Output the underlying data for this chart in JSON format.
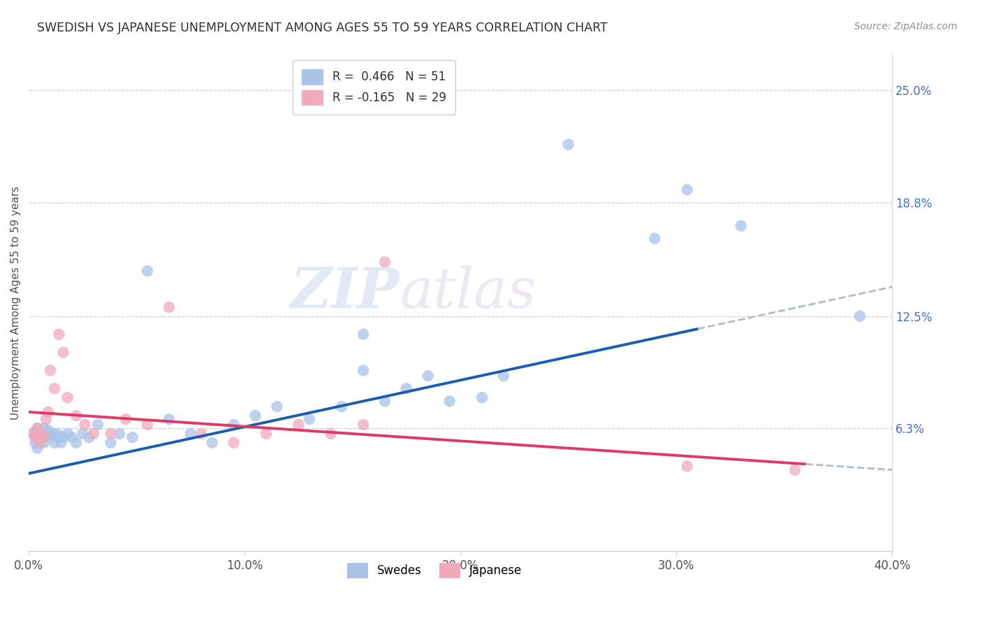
{
  "title": "SWEDISH VS JAPANESE UNEMPLOYMENT AMONG AGES 55 TO 59 YEARS CORRELATION CHART",
  "source": "Source: ZipAtlas.com",
  "ylabel": "Unemployment Among Ages 55 to 59 years",
  "xlim": [
    0.0,
    0.4
  ],
  "ylim": [
    -0.005,
    0.27
  ],
  "xtick_labels": [
    "0.0%",
    "10.0%",
    "20.0%",
    "30.0%",
    "40.0%"
  ],
  "xtick_vals": [
    0.0,
    0.1,
    0.2,
    0.3,
    0.4
  ],
  "ytick_labels": [
    "6.3%",
    "12.5%",
    "18.8%",
    "25.0%"
  ],
  "ytick_vals": [
    0.063,
    0.125,
    0.188,
    0.25
  ],
  "watermark_zip": "ZIP",
  "watermark_atlas": "atlas",
  "legend_line1": "R =  0.466   N = 51",
  "legend_line2": "R = -0.165   N = 29",
  "swede_color": "#aac4e8",
  "japanese_color": "#f0aabb",
  "swede_line_color": "#1a5cb0",
  "japanese_line_color": "#e0406080",
  "dashed_line_color": "#b0bcc8",
  "swedes_x": [
    0.002,
    0.003,
    0.003,
    0.004,
    0.004,
    0.005,
    0.005,
    0.006,
    0.006,
    0.007,
    0.007,
    0.008,
    0.009,
    0.01,
    0.011,
    0.012,
    0.013,
    0.014,
    0.015,
    0.016,
    0.018,
    0.02,
    0.022,
    0.025,
    0.028,
    0.032,
    0.038,
    0.042,
    0.048,
    0.055,
    0.065,
    0.075,
    0.085,
    0.095,
    0.105,
    0.115,
    0.13,
    0.145,
    0.155,
    0.165,
    0.175,
    0.185,
    0.195,
    0.21,
    0.22,
    0.155,
    0.25,
    0.29,
    0.305,
    0.33,
    0.385
  ],
  "swedes_y": [
    0.06,
    0.058,
    0.055,
    0.063,
    0.052,
    0.06,
    0.055,
    0.06,
    0.058,
    0.055,
    0.063,
    0.06,
    0.062,
    0.058,
    0.06,
    0.055,
    0.06,
    0.058,
    0.055,
    0.058,
    0.06,
    0.058,
    0.055,
    0.06,
    0.058,
    0.065,
    0.055,
    0.06,
    0.058,
    0.15,
    0.068,
    0.06,
    0.055,
    0.065,
    0.07,
    0.075,
    0.068,
    0.075,
    0.095,
    0.078,
    0.085,
    0.092,
    0.078,
    0.08,
    0.092,
    0.115,
    0.22,
    0.168,
    0.195,
    0.175,
    0.125
  ],
  "japanese_x": [
    0.002,
    0.003,
    0.004,
    0.005,
    0.006,
    0.007,
    0.008,
    0.009,
    0.01,
    0.012,
    0.014,
    0.016,
    0.018,
    0.022,
    0.026,
    0.03,
    0.038,
    0.045,
    0.055,
    0.065,
    0.08,
    0.095,
    0.11,
    0.125,
    0.14,
    0.155,
    0.165,
    0.305,
    0.355
  ],
  "japanese_y": [
    0.06,
    0.058,
    0.063,
    0.055,
    0.06,
    0.058,
    0.068,
    0.072,
    0.095,
    0.085,
    0.115,
    0.105,
    0.08,
    0.07,
    0.065,
    0.06,
    0.06,
    0.068,
    0.065,
    0.13,
    0.06,
    0.055,
    0.06,
    0.065,
    0.06,
    0.065,
    0.155,
    0.042,
    0.04
  ],
  "swede_marker_size": 140,
  "japanese_marker_size": 140,
  "sw_line_x0": 0.0,
  "sw_line_y0": 0.038,
  "sw_line_x1": 0.31,
  "sw_line_y1": 0.118,
  "jp_line_x0": 0.0,
  "jp_line_y0": 0.072,
  "jp_line_x1": 0.4,
  "jp_line_y1": 0.04
}
